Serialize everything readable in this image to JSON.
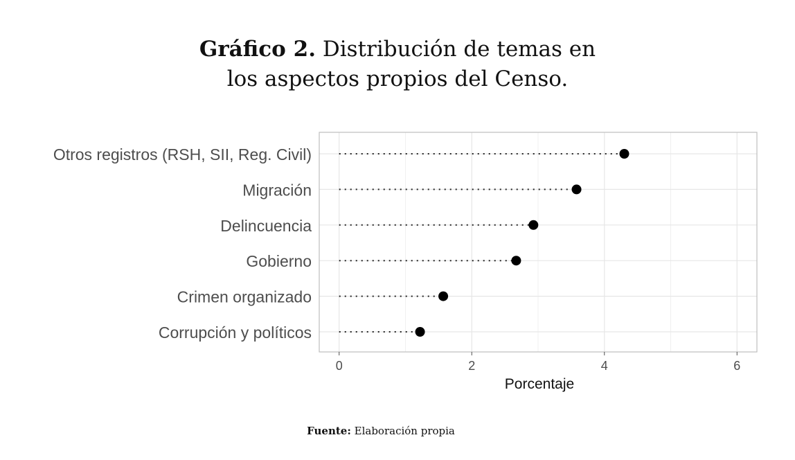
{
  "title": {
    "prefix": "Gráfico 2.",
    "line1": "Distribución de temas en",
    "line2": "los aspectos propios del Censo."
  },
  "source": {
    "label": "Fuente:",
    "text": "Elaboración propia"
  },
  "chart_data": {
    "type": "scatter",
    "style": "dot-plot",
    "categories": [
      "Otros registros (RSH, SII, Reg. Civil)",
      "Migración",
      "Delincuencia",
      "Gobierno",
      "Crimen organizado",
      "Corrupción y políticos"
    ],
    "values": [
      4.3,
      3.58,
      2.93,
      2.67,
      1.57,
      1.22
    ],
    "xlabel": "Porcentaje",
    "ylabel": "",
    "xlim": [
      -0.3,
      6.3
    ],
    "xticks": [
      0,
      2,
      4,
      6
    ],
    "grid": true,
    "legend": "none",
    "colors": {
      "point": "#000000",
      "grid": "#e6e6e6",
      "border": "#bdbdbd",
      "label": "#4d4d4d"
    }
  }
}
